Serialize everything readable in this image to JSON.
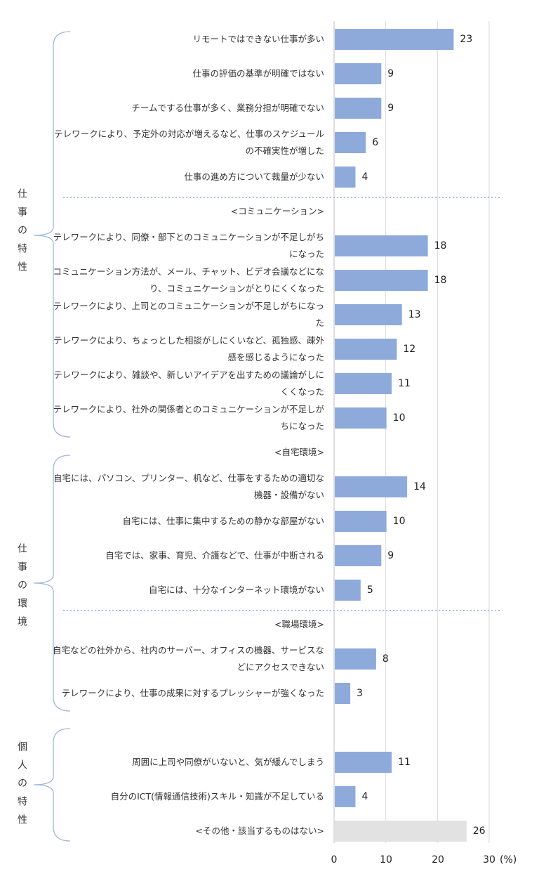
{
  "chart_data": {
    "type": "bar",
    "orientation": "horizontal",
    "xlim": [
      0,
      30
    ],
    "x_ticks": [
      "0",
      "10",
      "20",
      "30"
    ],
    "x_unit": "(%)",
    "grid": true,
    "colors": {
      "bar": "#8eaadb",
      "other_bar": "#e3e2e2",
      "grid": "#d9d9d9",
      "bracket": "#9db7dc",
      "divider": "#8eaadb"
    },
    "groups": [
      {
        "label": "仕事の特性"
      },
      {
        "label": "仕事の環境"
      },
      {
        "label": "個人の特性"
      }
    ],
    "items": [
      {
        "kind": "bar",
        "label": "リモートではできない仕事が多い",
        "value": 23
      },
      {
        "kind": "bar",
        "label": "仕事の評価の基準が明確ではない",
        "value": 9
      },
      {
        "kind": "bar",
        "label": "チームでする仕事が多く、業務分担が明確でない",
        "value": 9
      },
      {
        "kind": "bar",
        "label": "テレワークにより、予定外の対応が増えるなど、仕事のスケジュールの不確実性が増した",
        "value": 6
      },
      {
        "kind": "bar",
        "label": "仕事の進め方について裁量が少ない",
        "value": 4
      },
      {
        "kind": "header",
        "label": "<コミュニケーション>"
      },
      {
        "kind": "bar",
        "label": "テレワークにより、同僚・部下とのコミュニケーションが不足しがちになった",
        "value": 18
      },
      {
        "kind": "bar",
        "label": "コミュニケーション方法が、メール、チャット、ビデオ会議などになり、コミュニケーションがとりにくくなった",
        "value": 18
      },
      {
        "kind": "bar",
        "label": "テレワークにより、上司とのコミュニケーションが不足しがちになった",
        "value": 13
      },
      {
        "kind": "bar",
        "label": "テレワークにより、ちょっとした相談がしにくいなど、孤独感、疎外感を感じるようになった",
        "value": 12
      },
      {
        "kind": "bar",
        "label": "テレワークにより、雑談や、新しいアイデアを出すための議論がしにくくなった",
        "value": 11
      },
      {
        "kind": "bar",
        "label": "テレワークにより、社外の関係者とのコミュニケーションが不足しがちになった",
        "value": 10
      },
      {
        "kind": "header",
        "label": "<自宅環境>"
      },
      {
        "kind": "bar",
        "label": "自宅には、パソコン、プリンター、机など、仕事をするための適切な機器・設備がない",
        "value": 14
      },
      {
        "kind": "bar",
        "label": "自宅には、仕事に集中するための静かな部屋がない",
        "value": 10
      },
      {
        "kind": "bar",
        "label": "自宅では、家事、育児、介護などで、仕事が中断される",
        "value": 9
      },
      {
        "kind": "bar",
        "label": "自宅には、十分なインターネット環境がない",
        "value": 5
      },
      {
        "kind": "header",
        "label": "<職場環境>"
      },
      {
        "kind": "bar",
        "label": "自宅などの社外から、社内のサーバー、オフィスの機器、サービスなどにアクセスできない",
        "value": 8
      },
      {
        "kind": "bar",
        "label": "テレワークにより、仕事の成果に対するプレッシャーが強くなった",
        "value": 3
      },
      {
        "kind": "blank"
      },
      {
        "kind": "bar",
        "label": "周囲に上司や同僚がいないと、気が緩んでしまう",
        "value": 11
      },
      {
        "kind": "bar",
        "label": "自分のICT(情報通信技術)スキル・知識が不足している",
        "value": 4
      },
      {
        "kind": "other",
        "label": "<その他・該当するものはない>",
        "value": 26
      }
    ]
  }
}
